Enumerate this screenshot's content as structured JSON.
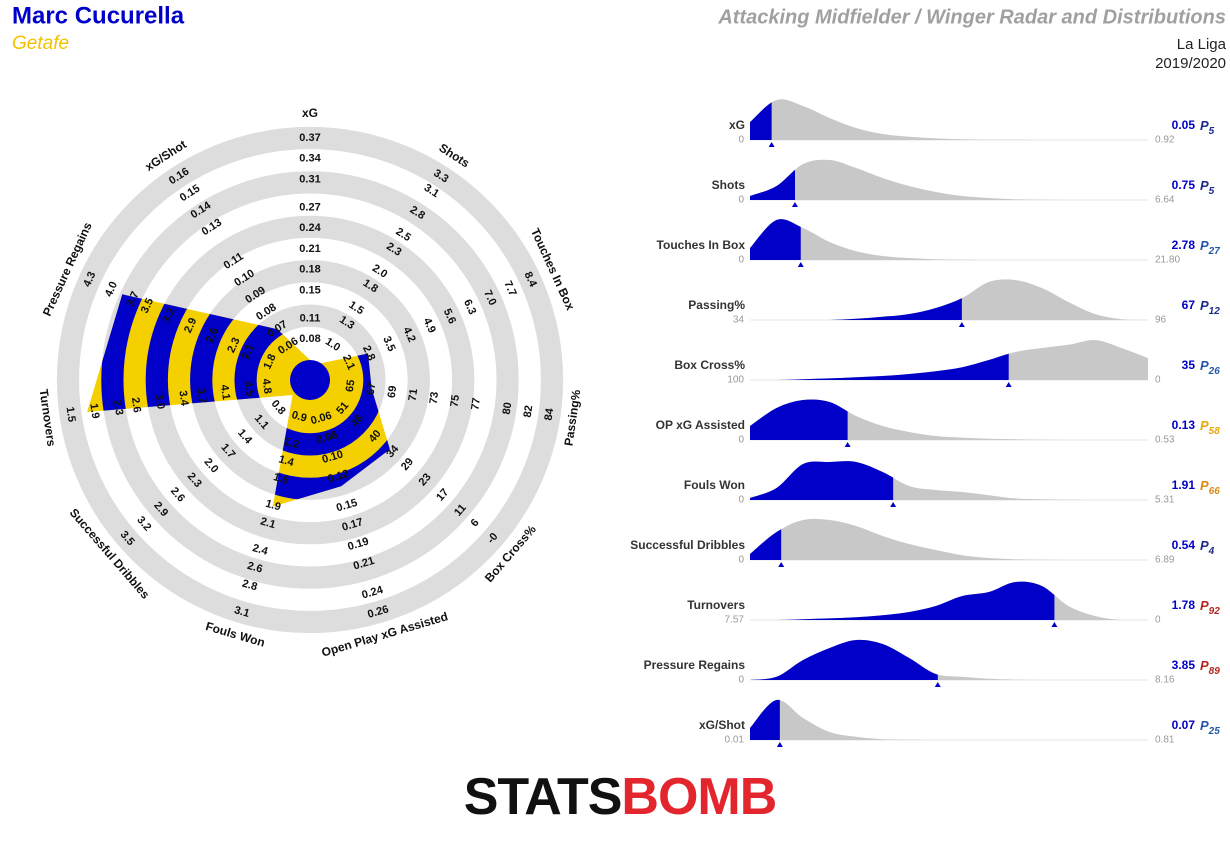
{
  "header": {
    "player": "Marc Cucurella",
    "team": "Getafe",
    "title": "Attacking Midfielder / Winger Radar and Distributions",
    "league": "La Liga",
    "season": "2019/2020",
    "logo": [
      "STATS",
      "BOMB"
    ]
  },
  "chart_data": [
    {
      "type": "radar",
      "fill_color": "#f5d000",
      "band_color": "#0000c8",
      "ring_color": "#dddddd",
      "axes": [
        {
          "name": "xG",
          "value": 0.05,
          "lim": [
            0.05,
            0.37
          ],
          "ticks": [
            0.08,
            0.11,
            0.15,
            0.18,
            0.21,
            0.24,
            0.27,
            0.31,
            0.34,
            0.37
          ]
        },
        {
          "name": "Shots",
          "value": 0.75,
          "lim": [
            0.75,
            3.3
          ],
          "ticks": [
            {
              "value": 1,
              "label": "1.0"
            },
            1.3,
            1.5,
            1.8,
            {
              "value": 2,
              "label": "2.0"
            },
            2.3,
            2.5,
            2.8,
            3.1,
            3.3
          ]
        },
        {
          "name": "Touches In Box",
          "value": 2.78,
          "lim": [
            1.4,
            8.4
          ],
          "ticks": [
            2.1,
            2.8,
            3.5,
            4.2,
            4.9,
            5.6,
            6.3,
            {
              "value": 7,
              "label": "7.0"
            },
            7.7,
            8.4
          ]
        },
        {
          "name": "Passing%",
          "value": 67,
          "lim": [
            63,
            84
          ],
          "ticks": [
            65,
            67,
            69,
            71,
            73,
            75,
            77,
            80,
            82,
            84
          ]
        },
        {
          "name": "Box Cross%",
          "value": 35,
          "lim": [
            57,
            0
          ],
          "ticks": [
            51,
            46,
            40,
            34,
            29,
            23,
            17,
            11,
            6,
            {
              "value": 0,
              "label": "-0"
            }
          ]
        },
        {
          "name": "Open Play xG Assisted",
          "value": 0.13,
          "lim": [
            0.04,
            0.26
          ],
          "ticks": [
            0.06,
            0.08,
            {
              "value": 0.1,
              "label": "0.10"
            },
            0.12,
            0.15,
            0.17,
            0.19,
            0.21,
            0.24,
            0.26
          ]
        },
        {
          "name": "Fouls Won",
          "value": 1.91,
          "lim": [
            0.7,
            3.1
          ],
          "ticks": [
            0.9,
            1.2,
            1.4,
            1.6,
            1.9,
            2.1,
            2.4,
            2.6,
            2.8,
            3.1
          ]
        },
        {
          "name": "Successful Dribbles",
          "value": 0.54,
          "lim": [
            0.5,
            3.5
          ],
          "ticks": [
            0.8,
            1.1,
            1.4,
            1.7,
            {
              "value": 2,
              "label": "2.0"
            },
            2.3,
            2.6,
            2.9,
            3.2,
            3.5
          ]
        },
        {
          "name": "Turnovers",
          "value": 1.78,
          "lim": [
            5.2,
            1.5
          ],
          "ticks": [
            4.8,
            4.5,
            4.1,
            3.7,
            3.4,
            {
              "value": 3,
              "label": "3.0"
            },
            2.6,
            2.3,
            1.9,
            1.5
          ]
        },
        {
          "name": "Pressure Regains",
          "value": 3.85,
          "lim": [
            1.5,
            4.3
          ],
          "ticks": [
            1.8,
            2.1,
            2.3,
            2.6,
            2.9,
            3.2,
            3.5,
            3.7,
            {
              "value": 4,
              "label": "4.0"
            },
            4.3
          ]
        },
        {
          "name": "xG/Shot",
          "value": 0.07,
          "lim": [
            0.05,
            0.16
          ],
          "ticks": [
            0.06,
            0.07,
            0.08,
            0.09,
            {
              "value": 0.1,
              "label": "0.10"
            },
            0.11,
            0.13,
            0.14,
            0.15,
            0.16
          ]
        }
      ]
    },
    {
      "type": "distribution",
      "percentile_label": "P",
      "fill_color": "#0000c8",
      "dist_color": "#c8c8c8",
      "rows": [
        {
          "name": "xG",
          "xlim": [
            0,
            0.92
          ],
          "value": 0.05,
          "percentile": 5,
          "percentile_color": "#1c2a8a",
          "density": [
            0.45,
            1.0,
            0.85,
            0.55,
            0.3,
            0.15,
            0.08,
            0.04,
            0.02,
            0.01,
            0.01,
            0,
            0,
            0,
            0,
            0
          ]
        },
        {
          "name": "Shots",
          "xlim": [
            0,
            6.64
          ],
          "value": 0.75,
          "percentile": 5,
          "percentile_color": "#1c2a8a",
          "density": [
            0.1,
            0.35,
            0.9,
            1.0,
            0.8,
            0.55,
            0.35,
            0.2,
            0.1,
            0.05,
            0.02,
            0.01,
            0,
            0,
            0,
            0
          ]
        },
        {
          "name": "Touches In Box",
          "xlim": [
            0,
            {
              "value": 21.8,
              "label": "21.80"
            }
          ],
          "value": 2.78,
          "percentile": 27,
          "percentile_color": "#2456a6",
          "density": [
            0.3,
            1.0,
            0.8,
            0.45,
            0.22,
            0.1,
            0.05,
            0.02,
            0.01,
            0,
            0,
            0,
            0,
            0,
            0,
            0
          ]
        },
        {
          "name": "Passing%",
          "xlim": [
            34,
            96
          ],
          "value": 67,
          "percentile": 12,
          "percentile_color": "#1c2a8a",
          "density": [
            0,
            0,
            0,
            0,
            0.03,
            0.08,
            0.15,
            0.3,
            0.55,
            0.95,
            1.0,
            0.8,
            0.45,
            0.15,
            0.02,
            0
          ]
        },
        {
          "name": "Box Cross%",
          "xlim": [
            100,
            0
          ],
          "value": 35,
          "percentile": 26,
          "percentile_color": "#2456a6",
          "density": [
            0,
            0,
            0.02,
            0.04,
            0.07,
            0.1,
            0.15,
            0.22,
            0.32,
            0.5,
            0.7,
            0.8,
            0.88,
            1.0,
            0.8,
            0.55
          ]
        },
        {
          "name": "OP xG Assisted",
          "xlim": [
            0,
            0.53
          ],
          "value": 0.13,
          "percentile": 58,
          "percentile_color": "#e8a70d",
          "density": [
            0.35,
            0.8,
            1.0,
            0.95,
            0.6,
            0.35,
            0.2,
            0.1,
            0.06,
            0.03,
            0.02,
            0.01,
            0,
            0,
            0,
            0
          ]
        },
        {
          "name": "Fouls Won",
          "xlim": [
            0,
            5.31
          ],
          "value": 1.91,
          "percentile": 66,
          "percentile_color": "#d98a10",
          "density": [
            0.05,
            0.3,
            0.9,
            0.95,
            0.95,
            0.7,
            0.35,
            0.25,
            0.2,
            0.12,
            0.04,
            0.02,
            0.01,
            0,
            0,
            0
          ]
        },
        {
          "name": "Successful Dribbles",
          "xlim": [
            0,
            6.89
          ],
          "value": 0.54,
          "percentile": 4,
          "percentile_color": "#1c2a8a",
          "density": [
            0.15,
            0.7,
            1.0,
            1.0,
            0.85,
            0.6,
            0.4,
            0.25,
            0.12,
            0.05,
            0.02,
            0.01,
            0,
            0,
            0,
            0
          ]
        },
        {
          "name": "Turnovers",
          "xlim": [
            7.57,
            0
          ],
          "value": 1.78,
          "percentile": 92,
          "percentile_color": "#b3261e",
          "density": [
            0,
            0,
            0.02,
            0.04,
            0.07,
            0.12,
            0.2,
            0.35,
            0.6,
            0.7,
            0.95,
            0.85,
            0.35,
            0.1,
            0,
            0
          ]
        },
        {
          "name": "Pressure Regains",
          "xlim": [
            0,
            8.16
          ],
          "value": 3.85,
          "percentile": 89,
          "percentile_color": "#b3261e",
          "density": [
            0,
            0.08,
            0.5,
            0.8,
            1.0,
            0.9,
            0.55,
            0.15,
            0.08,
            0.03,
            0.01,
            0,
            0,
            0,
            0,
            0
          ]
        },
        {
          "name": "xG/Shot",
          "xlim": [
            0.01,
            0.81
          ],
          "value": 0.07,
          "percentile": 25,
          "percentile_color": "#2456a6",
          "density": [
            0.3,
            1.0,
            0.55,
            0.2,
            0.08,
            0.02,
            0.01,
            0,
            0,
            0,
            0,
            0,
            0,
            0,
            0,
            0
          ]
        }
      ]
    }
  ]
}
